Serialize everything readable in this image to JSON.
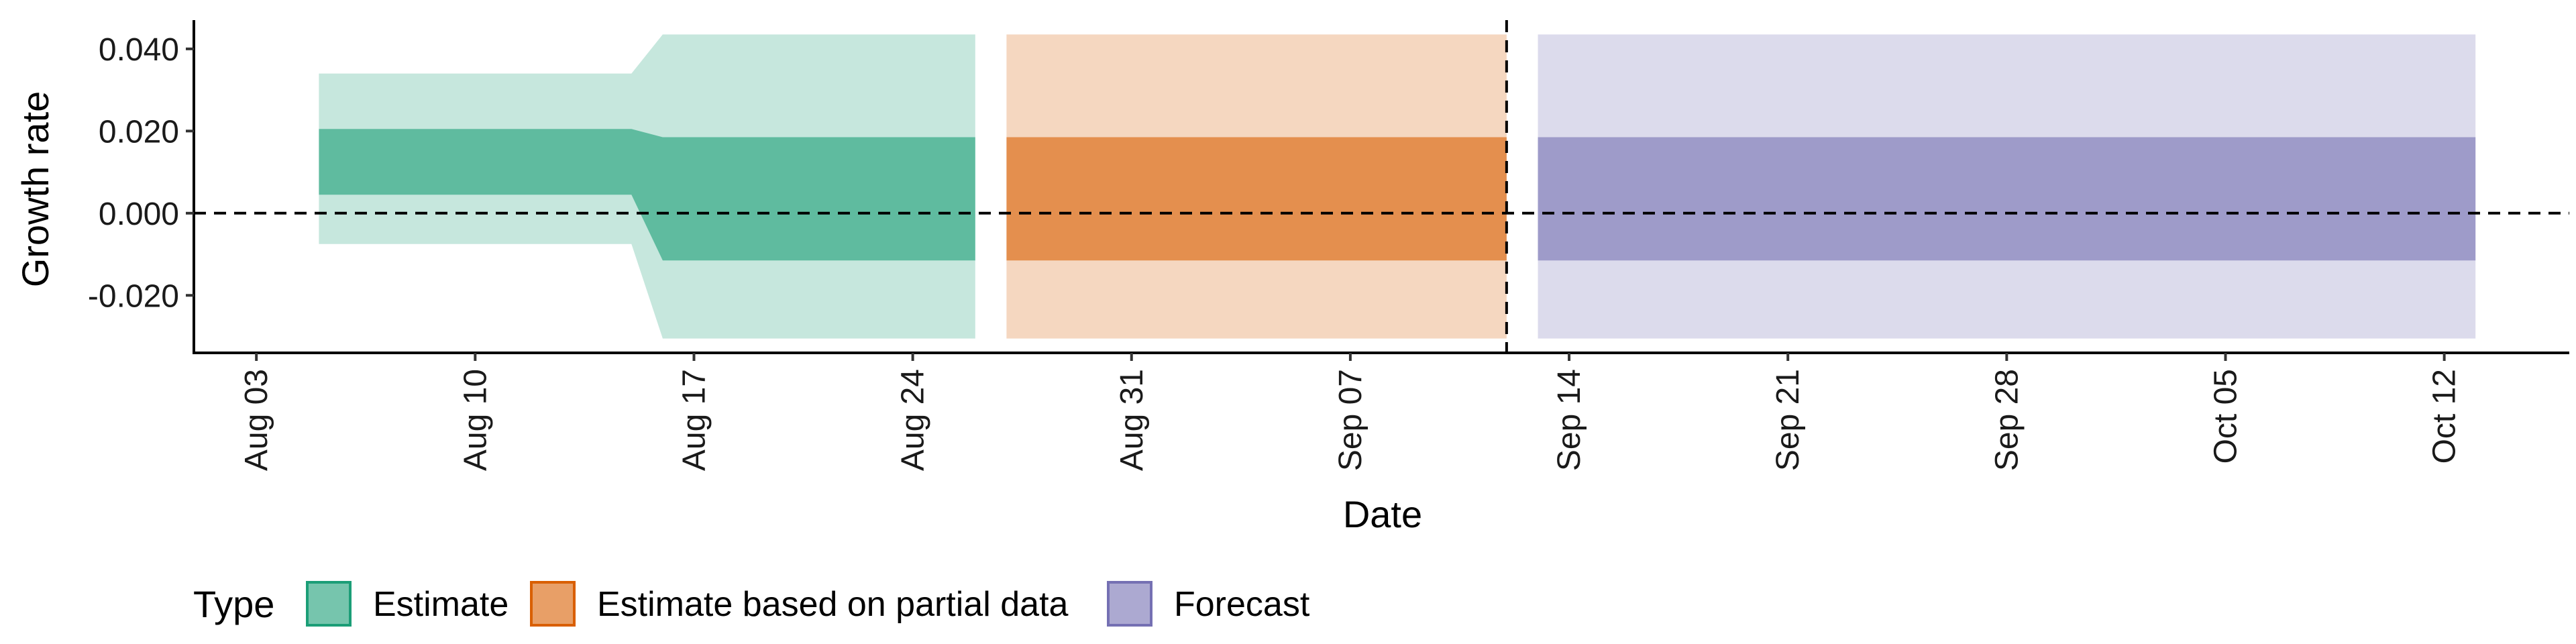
{
  "chart_data": {
    "type": "area",
    "title": "",
    "xlabel": "Date",
    "ylabel": "Growth rate",
    "ylim": [
      -0.034,
      0.047
    ],
    "xlim": [
      "2020-08-01",
      "2020-10-16"
    ],
    "y_ticks": [
      {
        "value": -0.02,
        "label": "-0.020"
      },
      {
        "value": 0.0,
        "label": "0.000"
      },
      {
        "value": 0.02,
        "label": "0.020"
      },
      {
        "value": 0.04,
        "label": "0.040"
      }
    ],
    "x_ticks": [
      {
        "date": "2020-08-03",
        "label": "Aug 03"
      },
      {
        "date": "2020-08-10",
        "label": "Aug 10"
      },
      {
        "date": "2020-08-17",
        "label": "Aug 17"
      },
      {
        "date": "2020-08-24",
        "label": "Aug 24"
      },
      {
        "date": "2020-08-31",
        "label": "Aug 31"
      },
      {
        "date": "2020-09-07",
        "label": "Sep 07"
      },
      {
        "date": "2020-09-14",
        "label": "Sep 14"
      },
      {
        "date": "2020-09-21",
        "label": "Sep 21"
      },
      {
        "date": "2020-09-28",
        "label": "Sep 28"
      },
      {
        "date": "2020-10-05",
        "label": "Oct 05"
      },
      {
        "date": "2020-10-12",
        "label": "Oct 12"
      }
    ],
    "reference_lines": {
      "horizontal_y": 0.0,
      "vertical_date": "2020-09-12"
    },
    "legend": {
      "title": "Type",
      "position": "bottom-left",
      "entries": [
        "Estimate",
        "Estimate based on partial data",
        "Forecast"
      ]
    },
    "series": [
      {
        "name": "Estimate",
        "color": "#1B9E77",
        "points": [
          {
            "date": "2020-08-05",
            "outer_low": -0.0075,
            "inner_low": 0.0045,
            "inner_high": 0.0205,
            "outer_high": 0.034
          },
          {
            "date": "2020-08-15",
            "outer_low": -0.0075,
            "inner_low": 0.0045,
            "inner_high": 0.0205,
            "outer_high": 0.034
          },
          {
            "date": "2020-08-16",
            "outer_low": -0.0305,
            "inner_low": -0.0115,
            "inner_high": 0.0185,
            "outer_high": 0.0435
          },
          {
            "date": "2020-08-26",
            "outer_low": -0.0305,
            "inner_low": -0.0115,
            "inner_high": 0.0185,
            "outer_high": 0.0435
          }
        ]
      },
      {
        "name": "Estimate based on partial data",
        "color": "#D95F02",
        "points": [
          {
            "date": "2020-08-27",
            "outer_low": -0.0305,
            "inner_low": -0.0115,
            "inner_high": 0.0185,
            "outer_high": 0.0435
          },
          {
            "date": "2020-09-12",
            "outer_low": -0.0305,
            "inner_low": -0.0115,
            "inner_high": 0.0185,
            "outer_high": 0.0435
          }
        ]
      },
      {
        "name": "Forecast",
        "color": "#7570B3",
        "points": [
          {
            "date": "2020-09-13",
            "outer_low": -0.0305,
            "inner_low": -0.0115,
            "inner_high": 0.0185,
            "outer_high": 0.0435
          },
          {
            "date": "2020-10-13",
            "outer_low": -0.0305,
            "inner_low": -0.0115,
            "inner_high": 0.0185,
            "outer_high": 0.0435
          }
        ]
      }
    ]
  }
}
